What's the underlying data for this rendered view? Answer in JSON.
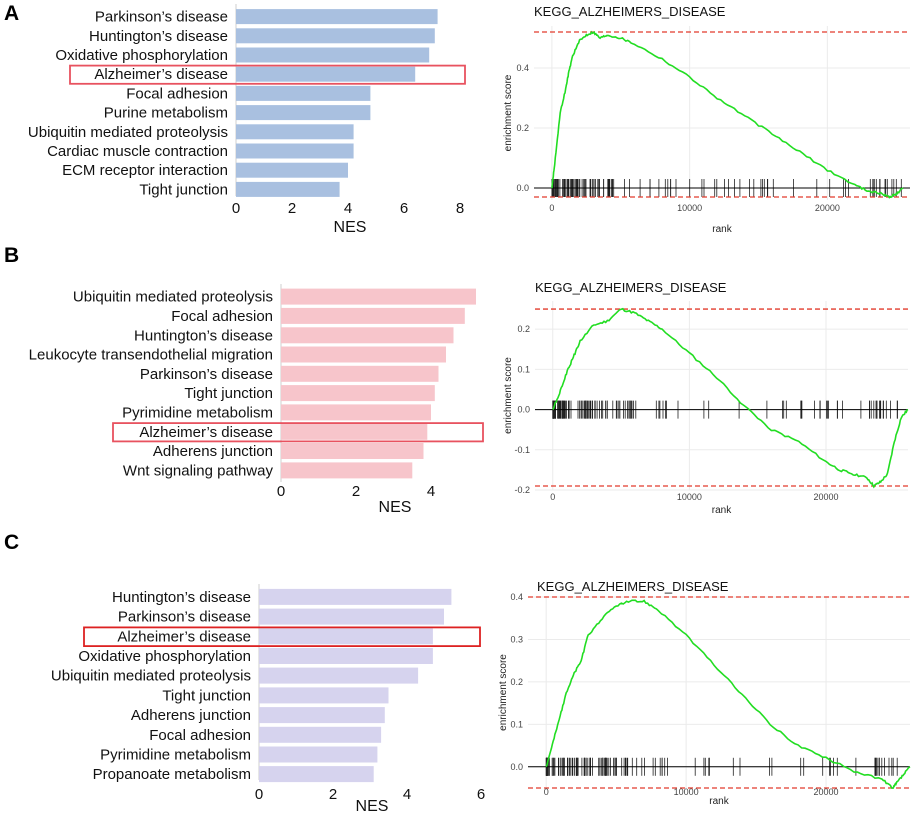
{
  "chart_data": [
    {
      "panel": "A",
      "type": "bar",
      "orientation": "horizontal",
      "color": "#a9c0e0",
      "highlight_color": "#e8525f",
      "highlight": "Alzheimer’s disease",
      "categories": [
        "Parkinson’s disease",
        "Huntington’s disease",
        "Oxidative phosphorylation",
        "Alzheimer’s disease",
        "Focal adhesion",
        "Purine metabolism",
        "Ubiquitin mediated proteolysis",
        "Cardiac muscle contraction",
        "ECM receptor interaction",
        "Tight junction"
      ],
      "values": [
        7.2,
        7.1,
        6.9,
        6.4,
        4.8,
        4.8,
        4.2,
        4.2,
        4.0,
        3.7
      ],
      "xlabel": "NES",
      "xlim": [
        0,
        8
      ],
      "xticks": [
        0,
        2,
        4,
        6,
        8
      ]
    },
    {
      "panel": "A",
      "type": "line",
      "title": "KEGG_ALZHEIMERS_DISEASE",
      "xlabel": "rank",
      "ylabel": "enrichment score",
      "line_color": "#22dd22",
      "xlim": [
        -1300,
        26000
      ],
      "ylim": [
        -0.04,
        0.54
      ],
      "xticks": [
        0,
        10000,
        20000
      ],
      "yticks": [
        0.0,
        0.2,
        0.4
      ],
      "ytick_labels": [
        "0.0",
        "0.2",
        "0.4"
      ],
      "max_es": 0.52,
      "min_es": -0.03,
      "x": [
        0,
        200,
        600,
        1000,
        1200,
        1500,
        2000,
        2500,
        3000,
        3500,
        4000,
        5000,
        6000,
        8000,
        10000,
        12000,
        14000,
        16000,
        18000,
        20000,
        22000,
        23000,
        24000,
        24500,
        25000,
        25500
      ],
      "y": [
        0,
        0.08,
        0.25,
        0.33,
        0.38,
        0.44,
        0.49,
        0.51,
        0.52,
        0.5,
        0.51,
        0.5,
        0.48,
        0.43,
        0.37,
        0.3,
        0.24,
        0.18,
        0.12,
        0.06,
        0.01,
        -0.01,
        -0.02,
        -0.03,
        -0.02,
        0
      ]
    },
    {
      "panel": "B",
      "type": "bar",
      "orientation": "horizontal",
      "color": "#f7c5cb",
      "highlight_color": "#e8525f",
      "highlight": "Alzheimer’s disease",
      "categories": [
        "Ubiquitin mediated proteolysis",
        "Focal adhesion",
        "Huntington’s disease",
        "Leukocyte transendothelial migration",
        "Parkinson’s disease",
        "Tight junction",
        "Pyrimidine metabolism",
        "Alzheimer’s disease",
        "Adherens junction",
        "Wnt signaling pathway"
      ],
      "values": [
        5.2,
        4.9,
        4.6,
        4.4,
        4.2,
        4.1,
        4.0,
        3.9,
        3.8,
        3.5
      ],
      "xlabel": "NES",
      "xlim": [
        0,
        5.3
      ],
      "xticks": [
        0,
        2,
        4
      ]
    },
    {
      "panel": "B",
      "type": "line",
      "title": "KEGG_ALZHEIMERS_DISEASE",
      "xlabel": "rank",
      "ylabel": "enrichment score",
      "line_color": "#22dd22",
      "xlim": [
        -1300,
        26000
      ],
      "ylim": [
        -0.2,
        0.27
      ],
      "xticks": [
        0,
        10000,
        20000
      ],
      "yticks": [
        -0.2,
        -0.1,
        0.0,
        0.1,
        0.2
      ],
      "ytick_labels": [
        "-0.2",
        "-0.1",
        "0.0",
        "0.1",
        "0.2"
      ],
      "max_es": 0.25,
      "min_es": -0.19,
      "x": [
        0,
        500,
        1000,
        1500,
        2000,
        3000,
        4000,
        5000,
        6000,
        7000,
        8000,
        10000,
        12000,
        14000,
        16000,
        18000,
        20000,
        21000,
        22000,
        23000,
        23500,
        24000,
        24500,
        25000,
        25500,
        26000
      ],
      "y": [
        0,
        0.04,
        0.09,
        0.13,
        0.17,
        0.21,
        0.22,
        0.25,
        0.24,
        0.22,
        0.2,
        0.14,
        0.08,
        0.01,
        -0.05,
        -0.08,
        -0.13,
        -0.15,
        -0.16,
        -0.17,
        -0.19,
        -0.18,
        -0.16,
        -0.08,
        -0.02,
        0
      ]
    },
    {
      "panel": "C",
      "type": "bar",
      "orientation": "horizontal",
      "color": "#d6d3ee",
      "highlight_color": "#dd2222",
      "highlight": "Alzheimer’s disease",
      "categories": [
        "Huntington’s disease",
        "Parkinson’s disease",
        "Alzheimer’s disease",
        "Oxidative phosphorylation",
        "Ubiquitin mediated proteolysis",
        "Tight junction",
        "Adherens junction",
        "Focal adhesion",
        "Pyrimidine metabolism",
        "Propanoate metabolism"
      ],
      "values": [
        5.2,
        5.0,
        4.7,
        4.7,
        4.3,
        3.5,
        3.4,
        3.3,
        3.2,
        3.1
      ],
      "xlabel": "NES",
      "xlim": [
        0,
        6
      ],
      "xticks": [
        0,
        2,
        4,
        6
      ],
      "xtick_labels": [
        "0",
        "2",
        "4",
        "6"
      ]
    },
    {
      "panel": "C",
      "type": "line",
      "title": "KEGG_ALZHEIMERS_DISEASE",
      "xlabel": "rank",
      "ylabel": "enrichment score",
      "line_color": "#22dd22",
      "xlim": [
        -1300,
        26000
      ],
      "ylim": [
        -0.05,
        0.4
      ],
      "xticks": [
        0,
        10000,
        20000
      ],
      "yticks": [
        0.0,
        0.1,
        0.2,
        0.3,
        0.4
      ],
      "ytick_labels": [
        "0.0",
        "0.1",
        "0.2",
        "0.3",
        "0.4"
      ],
      "max_es": 0.4,
      "min_es": -0.05,
      "x": [
        0,
        500,
        1000,
        1500,
        2000,
        2500,
        3000,
        4000,
        5000,
        6000,
        7000,
        8000,
        10000,
        12000,
        14000,
        16000,
        18000,
        20000,
        22000,
        24000,
        24800,
        25000,
        25500,
        26000
      ],
      "y": [
        0,
        0.06,
        0.12,
        0.18,
        0.22,
        0.25,
        0.31,
        0.35,
        0.38,
        0.39,
        0.39,
        0.37,
        0.31,
        0.24,
        0.17,
        0.1,
        0.05,
        0.02,
        -0.01,
        -0.03,
        -0.05,
        -0.04,
        -0.02,
        0
      ]
    }
  ],
  "panel_labels": [
    "A",
    "B",
    "C"
  ]
}
